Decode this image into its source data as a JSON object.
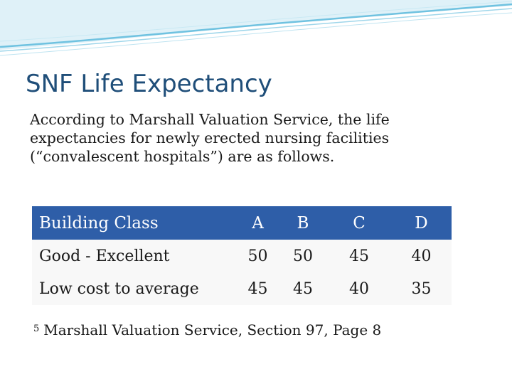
{
  "slide": {
    "title": "SNF Life Expectancy",
    "body": "According to Marshall Valuation Service, the life expectancies for newly erected nursing facilities (“convalescent hospitals”) are as follows."
  },
  "table": {
    "headers": [
      "Building Class",
      "A",
      "B",
      "C",
      "D"
    ],
    "rows": [
      {
        "label": "Good - Excellent",
        "values": [
          "50",
          "50",
          "45",
          "40"
        ]
      },
      {
        "label": "Low cost to average",
        "values": [
          "45",
          "45",
          "40",
          "35"
        ]
      }
    ]
  },
  "footnote": {
    "number": "5",
    "text": "Marshall Valuation Service, Section 97, Page 8"
  },
  "colors": {
    "title": "#1f4e79",
    "header_bg": "#2e5ea8",
    "wave": "#5ab5d9"
  }
}
